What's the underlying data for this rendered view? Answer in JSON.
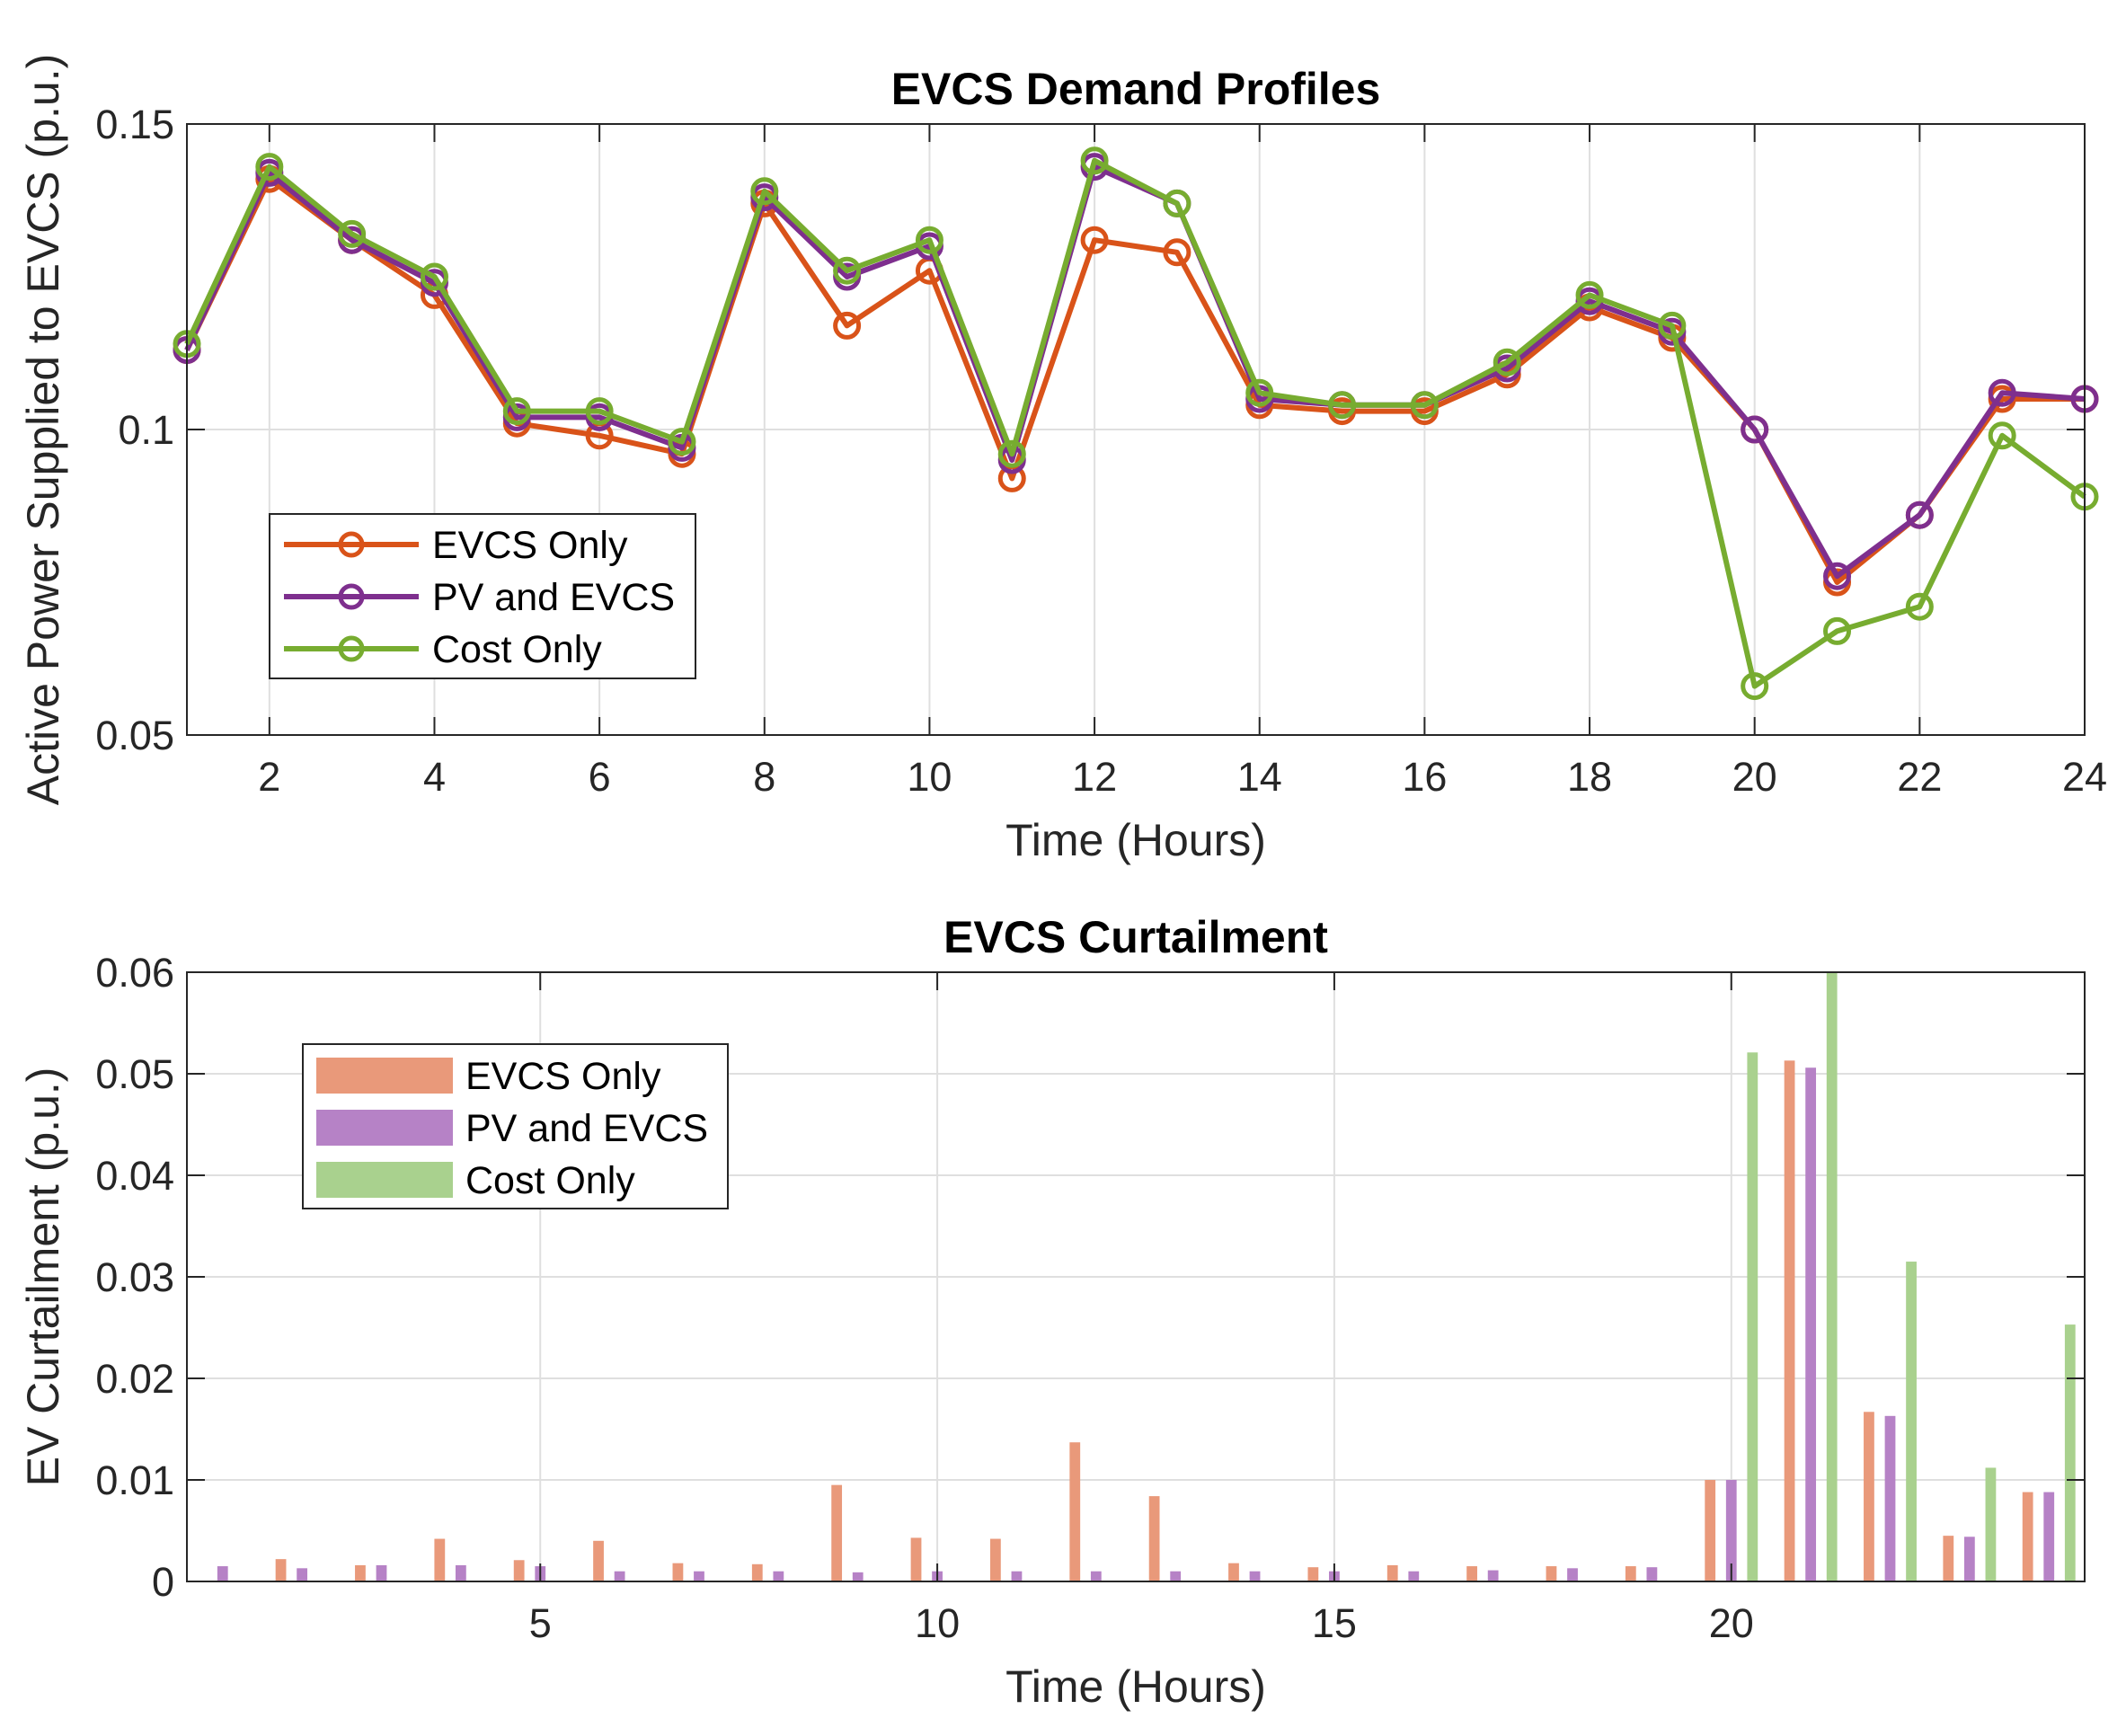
{
  "chart_data": [
    {
      "type": "line",
      "title": "EVCS Demand Profiles",
      "xlabel": "Time (Hours)",
      "ylabel": "Active Power Supplied to EVCS (p.u.)",
      "xlim": [
        1,
        24
      ],
      "ylim": [
        0.05,
        0.15
      ],
      "xticks": [
        2,
        4,
        6,
        8,
        10,
        12,
        14,
        16,
        18,
        20,
        22,
        24
      ],
      "yticks": [
        0.05,
        0.1,
        0.15
      ],
      "ytick_labels": [
        "0.05",
        "0.1",
        "0.15"
      ],
      "grid": true,
      "legend_position": "left-middle",
      "x": [
        1,
        2,
        3,
        4,
        5,
        6,
        7,
        8,
        9,
        10,
        11,
        12,
        13,
        14,
        15,
        16,
        17,
        18,
        19,
        20,
        21,
        22,
        23,
        24
      ],
      "series": [
        {
          "name": "EVCS Only",
          "color": "#D95319",
          "values": [
            0.113,
            0.141,
            0.131,
            0.122,
            0.101,
            0.099,
            0.096,
            0.137,
            0.117,
            0.126,
            0.092,
            0.131,
            0.129,
            0.104,
            0.103,
            0.103,
            0.109,
            0.12,
            0.115,
            0.1,
            0.075,
            0.086,
            0.105,
            0.105
          ]
        },
        {
          "name": "PV and EVCS",
          "color": "#7E2F8E",
          "values": [
            0.113,
            0.142,
            0.131,
            0.124,
            0.102,
            0.102,
            0.097,
            0.138,
            0.125,
            0.13,
            0.095,
            0.143,
            0.137,
            0.105,
            0.104,
            0.104,
            0.11,
            0.121,
            0.116,
            0.1,
            0.076,
            0.086,
            0.106,
            0.105
          ]
        },
        {
          "name": "Cost Only",
          "color": "#77AC30",
          "values": [
            0.114,
            0.143,
            0.132,
            0.125,
            0.103,
            0.103,
            0.098,
            0.139,
            0.126,
            0.131,
            0.096,
            0.144,
            0.137,
            0.106,
            0.104,
            0.104,
            0.111,
            0.122,
            0.117,
            0.058,
            0.067,
            0.071,
            0.099,
            0.089
          ]
        }
      ]
    },
    {
      "type": "bar",
      "title": "EVCS Curtailment",
      "xlabel": "Time (Hours)",
      "ylabel": "EV Curtailment (p.u.)",
      "xlim": [
        0.55,
        24.45
      ],
      "ylim": [
        0,
        0.06
      ],
      "xticks": [
        5,
        10,
        15,
        20
      ],
      "yticks": [
        0,
        0.01,
        0.02,
        0.03,
        0.04,
        0.05,
        0.06
      ],
      "ytick_labels": [
        "0",
        "0.01",
        "0.02",
        "0.03",
        "0.04",
        "0.05",
        "0.06"
      ],
      "grid": true,
      "legend_position": "top-left",
      "categories": [
        1,
        2,
        3,
        4,
        5,
        6,
        7,
        8,
        9,
        10,
        11,
        12,
        13,
        14,
        15,
        16,
        17,
        18,
        19,
        20,
        21,
        22,
        23,
        24
      ],
      "series": [
        {
          "name": "EVCS Only",
          "color": "#E9997A",
          "values": [
            0.0,
            0.0022,
            0.0016,
            0.0042,
            0.0021,
            0.004,
            0.0018,
            0.0017,
            0.0095,
            0.0043,
            0.0042,
            0.0137,
            0.0084,
            0.0018,
            0.0014,
            0.0016,
            0.0015,
            0.0015,
            0.0015,
            0.01,
            0.0513,
            0.0167,
            0.0045,
            0.0088
          ]
        },
        {
          "name": "PV and EVCS",
          "color": "#B682C6",
          "values": [
            0.0015,
            0.0013,
            0.0016,
            0.0016,
            0.0015,
            0.001,
            0.001,
            0.001,
            0.0009,
            0.001,
            0.001,
            0.001,
            0.001,
            0.001,
            0.001,
            0.001,
            0.0011,
            0.0013,
            0.0014,
            0.01,
            0.0506,
            0.0163,
            0.0044,
            0.0088
          ]
        },
        {
          "name": "Cost Only",
          "color": "#A9D18E",
          "values": [
            0,
            0,
            0,
            0,
            0,
            0,
            0,
            0,
            0,
            0,
            0,
            0,
            0,
            0,
            0,
            0,
            0,
            0,
            0,
            0.0521,
            0.06,
            0.0315,
            0.0112,
            0.0253
          ]
        }
      ]
    }
  ]
}
